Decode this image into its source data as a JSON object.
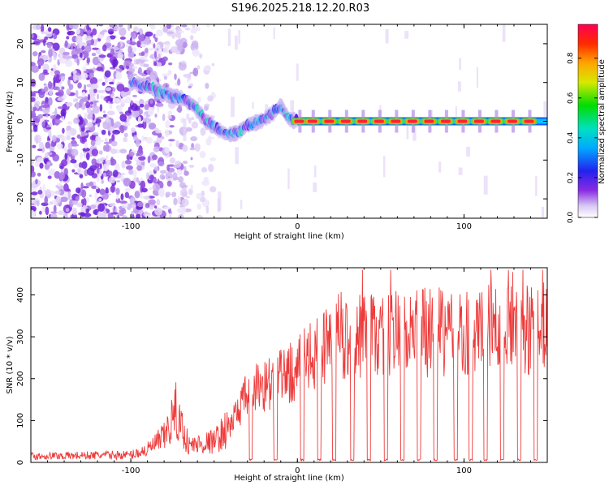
{
  "title": "S196.2025.218.12.20.R03",
  "chart_data": [
    {
      "type": "heatmap",
      "xlabel": "Height of straight line (km)",
      "ylabel": "Frequency (Hz)",
      "xlim": [
        -160,
        150
      ],
      "ylim": [
        -25,
        25
      ],
      "xticks": [
        -100,
        0,
        100
      ],
      "yticks": [
        -20,
        -10,
        0,
        10,
        20
      ],
      "colorbar": {
        "label": "Normalized spectral amplitude",
        "range": [
          0,
          0.97
        ],
        "ticks": [
          0.0,
          0.2,
          0.4,
          0.6,
          0.8
        ]
      },
      "ridge": [
        {
          "x": -100,
          "y": 10
        },
        {
          "x": -90,
          "y": 9
        },
        {
          "x": -80,
          "y": 7
        },
        {
          "x": -70,
          "y": 6
        },
        {
          "x": -62,
          "y": 4
        },
        {
          "x": -55,
          "y": 0
        },
        {
          "x": -48,
          "y": -2
        },
        {
          "x": -42,
          "y": -3.5
        },
        {
          "x": -36,
          "y": -3
        },
        {
          "x": -30,
          "y": -1
        },
        {
          "x": -22,
          "y": 0
        },
        {
          "x": -15,
          "y": 2
        },
        {
          "x": -10,
          "y": 4
        },
        {
          "x": -5,
          "y": 0.5
        },
        {
          "x": 0,
          "y": 0
        },
        {
          "x": 150,
          "y": 0
        }
      ],
      "peak_segments_x": [
        2,
        10,
        20,
        30,
        40,
        50,
        60,
        70,
        80,
        90,
        100,
        110,
        120,
        130,
        140
      ]
    },
    {
      "type": "line",
      "xlabel": "Height of straight line (km)",
      "ylabel": "SNR (10 * v/v)",
      "xlim": [
        -160,
        150
      ],
      "ylim": [
        0,
        465
      ],
      "xticks": [
        -100,
        0,
        100
      ],
      "yticks": [
        0,
        100,
        200,
        300,
        400
      ],
      "color": "#ee3a3a",
      "envelope": [
        {
          "x": -160,
          "y": 15
        },
        {
          "x": -100,
          "y": 18
        },
        {
          "x": -90,
          "y": 30
        },
        {
          "x": -80,
          "y": 60
        },
        {
          "x": -73,
          "y": 120
        },
        {
          "x": -65,
          "y": 40
        },
        {
          "x": -50,
          "y": 50
        },
        {
          "x": -40,
          "y": 90
        },
        {
          "x": -32,
          "y": 150
        },
        {
          "x": -25,
          "y": 180
        },
        {
          "x": -15,
          "y": 190
        },
        {
          "x": -5,
          "y": 210
        },
        {
          "x": 5,
          "y": 240
        },
        {
          "x": 20,
          "y": 280
        },
        {
          "x": 40,
          "y": 300
        },
        {
          "x": 80,
          "y": 310
        },
        {
          "x": 150,
          "y": 320
        }
      ],
      "dropouts_x": [
        -28,
        -13,
        3,
        13,
        22,
        33,
        43,
        53,
        63,
        73,
        83,
        95,
        104,
        113,
        123,
        133,
        143
      ]
    }
  ]
}
